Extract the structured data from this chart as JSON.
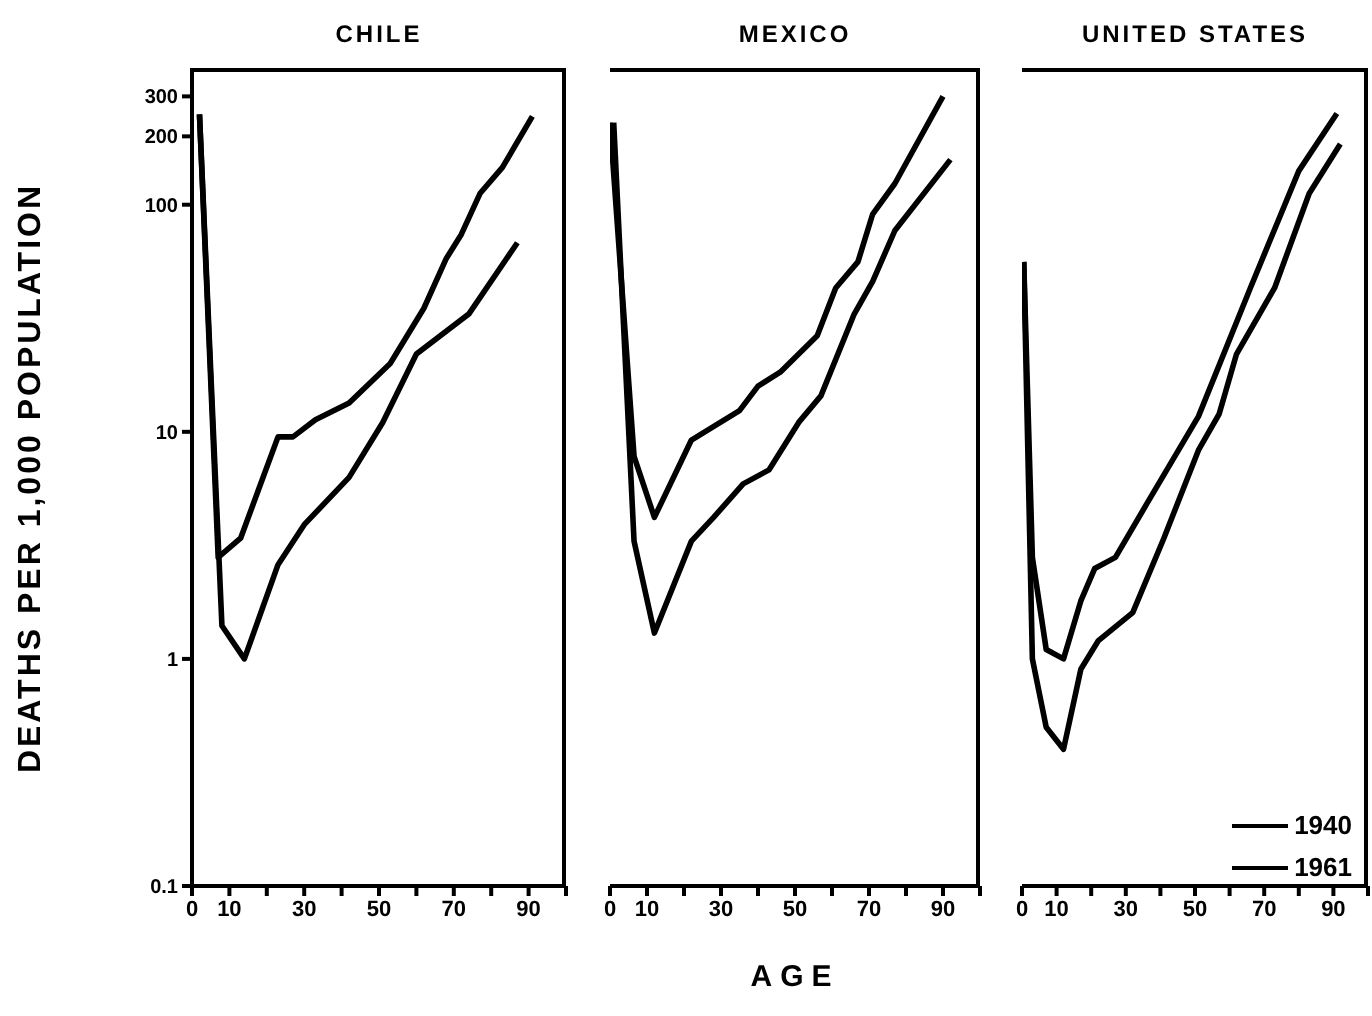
{
  "chart_data": [
    {
      "type": "line",
      "title": "CHILE",
      "ylabel": "DEATHS PER 1,000 POPULATION",
      "log": "y",
      "xlim": [
        0,
        100
      ],
      "xticks": [
        0,
        10,
        {
          "value": 20,
          "label": null
        },
        30,
        {
          "value": 40,
          "label": null
        },
        50,
        {
          "value": 60,
          "label": null
        },
        70,
        {
          "value": 80,
          "label": null
        },
        90,
        {
          "value": 100,
          "label": null
        }
      ],
      "ylim": [
        0.1,
        400
      ],
      "yticks": [
        0.1,
        1,
        10,
        100,
        200,
        300
      ],
      "marker": "none",
      "line_style": "solid",
      "series": [
        {
          "color": "#000000",
          "x": [
            2,
            7,
            13,
            23,
            27,
            33,
            42,
            53,
            62,
            68,
            72,
            77,
            83,
            91
          ],
          "values": [
            250,
            2.8,
            3.4,
            9.5,
            9.5,
            11.3,
            13.4,
            20,
            35,
            58,
            74,
            112,
            146,
            245
          ]
        },
        {
          "color": "#000000",
          "x": [
            2,
            8,
            14,
            23,
            30,
            42,
            51,
            60,
            74,
            87
          ],
          "values": [
            250,
            1.4,
            1.0,
            2.6,
            3.9,
            6.3,
            11,
            22,
            33,
            68
          ]
        }
      ]
    },
    {
      "type": "line",
      "title": "MEXICO",
      "xlabel": "AGE",
      "log": "y",
      "xlim": [
        0,
        100
      ],
      "xticks": [
        0,
        10,
        {
          "value": 20,
          "label": null
        },
        30,
        {
          "value": 40,
          "label": null
        },
        50,
        {
          "value": 60,
          "label": null
        },
        70,
        {
          "value": 80,
          "label": null
        },
        90,
        {
          "value": 100,
          "label": null
        }
      ],
      "ylim": [
        0.1,
        400
      ],
      "tick_labels": "x",
      "marker": "none",
      "line_style": "solid",
      "series": [
        {
          "color": "#000000",
          "x": [
            0,
            6.5,
            12,
            22,
            35,
            40,
            46,
            56,
            61,
            67,
            71,
            77,
            90
          ],
          "values": [
            230,
            7.8,
            4.2,
            9.2,
            12.4,
            15.9,
            18.3,
            26.5,
            43,
            56,
            91,
            124,
            300
          ]
        },
        {
          "color": "#000000",
          "x": [
            1,
            6.5,
            12,
            22,
            28,
            36,
            43,
            51,
            57,
            66,
            71,
            77,
            92
          ],
          "values": [
            230,
            3.3,
            1.3,
            3.3,
            4.2,
            5.9,
            6.8,
            11,
            14.4,
            33,
            46,
            77,
            158
          ]
        }
      ]
    },
    {
      "type": "line",
      "title": "UNITED STATES",
      "log": "y",
      "xlim": [
        0,
        100
      ],
      "xticks": [
        0,
        10,
        {
          "value": 20,
          "label": null
        },
        30,
        {
          "value": 40,
          "label": null
        },
        50,
        {
          "value": 60,
          "label": null
        },
        70,
        {
          "value": 80,
          "label": null
        },
        90,
        {
          "value": 100,
          "label": null
        }
      ],
      "ylim": [
        0.1,
        400
      ],
      "tick_labels": "x",
      "legend": "bottom right",
      "marker": "none",
      "line_style": "solid",
      "series": [
        {
          "name": "1940",
          "color": "#000000",
          "x": [
            0.5,
            3,
            7,
            12,
            17,
            21,
            27,
            36,
            51,
            66,
            80,
            91
          ],
          "values": [
            56,
            2.8,
            1.1,
            1.0,
            1.8,
            2.5,
            2.8,
            4.8,
            11.7,
            43,
            141,
            252
          ]
        },
        {
          "name": "1961",
          "color": "#000000",
          "x": [
            0.5,
            3,
            7,
            12,
            17,
            22,
            32,
            41,
            51,
            57,
            62,
            73,
            83,
            92
          ],
          "values": [
            56,
            1.0,
            0.5,
            0.4,
            0.9,
            1.2,
            1.6,
            3.4,
            8.3,
            12,
            22,
            43,
            112,
            185
          ]
        }
      ]
    }
  ]
}
